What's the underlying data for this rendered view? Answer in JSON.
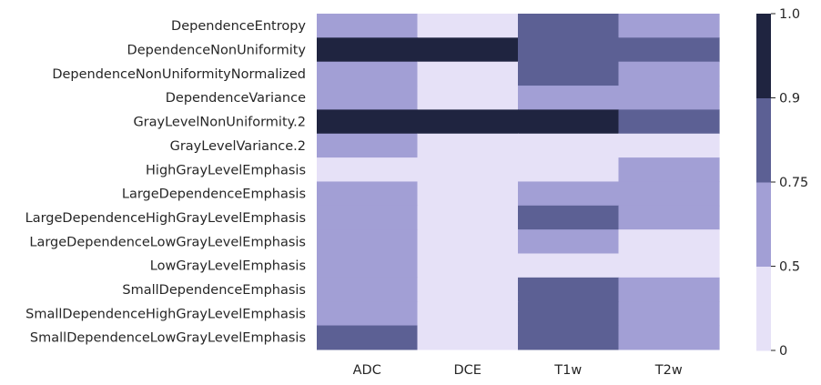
{
  "chart_data": {
    "type": "heatmap",
    "title": "",
    "xlabel": "",
    "ylabel": "",
    "columns": [
      "ADC",
      "DCE",
      "T1w",
      "T2w"
    ],
    "rows": [
      "DependenceEntropy",
      "DependenceNonUniformity",
      "DependenceNonUniformityNormalized",
      "DependenceVariance",
      "GrayLevelNonUniformity.2",
      "GrayLevelVariance.2",
      "HighGrayLevelEmphasis",
      "LargeDependenceEmphasis",
      "LargeDependenceHighGrayLevelEmphasis",
      "LargeDependenceLowGrayLevelEmphasis",
      "LowGrayLevelEmphasis",
      "SmallDependenceEmphasis",
      "SmallDependenceHighGrayLevelEmphasis",
      "SmallDependenceLowGrayLevelEmphasis"
    ],
    "values": [
      [
        0.75,
        0.5,
        0.9,
        0.75
      ],
      [
        1.0,
        1.0,
        0.9,
        0.9
      ],
      [
        0.75,
        0.5,
        0.9,
        0.75
      ],
      [
        0.75,
        0.5,
        0.75,
        0.75
      ],
      [
        1.0,
        1.0,
        1.0,
        0.9
      ],
      [
        0.75,
        0.5,
        0.5,
        0.5
      ],
      [
        0.5,
        0.5,
        0.5,
        0.75
      ],
      [
        0.75,
        0.5,
        0.75,
        0.75
      ],
      [
        0.75,
        0.5,
        0.9,
        0.75
      ],
      [
        0.75,
        0.5,
        0.75,
        0.5
      ],
      [
        0.75,
        0.5,
        0.5,
        0.5
      ],
      [
        0.75,
        0.5,
        0.9,
        0.75
      ],
      [
        0.75,
        0.5,
        0.9,
        0.75
      ],
      [
        0.9,
        0.5,
        0.9,
        0.75
      ]
    ],
    "colorbar": {
      "ticks": [
        "0",
        "0.5",
        "0.75",
        "0.9",
        "1.0"
      ],
      "bins": [
        {
          "from": 0,
          "to": 0.5,
          "color": "#e6e1f7"
        },
        {
          "from": 0.5,
          "to": 0.75,
          "color": "#a29fd5"
        },
        {
          "from": 0.75,
          "to": 0.9,
          "color": "#5c6094"
        },
        {
          "from": 0.9,
          "to": 1.0,
          "color": "#1f2440"
        }
      ]
    },
    "legend": "right"
  }
}
